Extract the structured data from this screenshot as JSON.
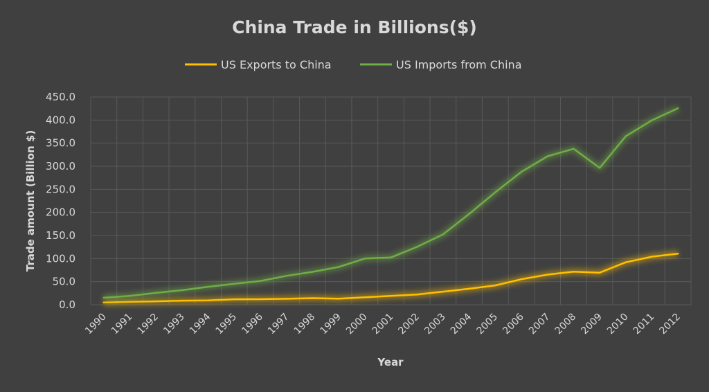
{
  "chart_data": {
    "type": "line",
    "title": "China Trade in Billions($)",
    "xlabel": "Year",
    "ylabel": "Trade amount  (Billion $)",
    "categories": [
      "1990",
      "1991",
      "1992",
      "1993",
      "1994",
      "1995",
      "1996",
      "1997",
      "1998",
      "1999",
      "2000",
      "2001",
      "2002",
      "2003",
      "2004",
      "2005",
      "2006",
      "2007",
      "2008",
      "2009",
      "2010",
      "2011",
      "2012"
    ],
    "ylim": [
      0,
      450
    ],
    "yticks": [
      "0.0",
      "50.0",
      "100.0",
      "150.0",
      "200.0",
      "250.0",
      "300.0",
      "350.0",
      "400.0",
      "450.0"
    ],
    "grid": true,
    "legend_position": "top",
    "series": [
      {
        "name": "US Exports to China",
        "color": "#ffc000",
        "values": [
          4.8,
          6.3,
          7.4,
          8.8,
          9.3,
          11.8,
          12.0,
          12.9,
          14.2,
          13.1,
          16.2,
          19.2,
          22.1,
          28.4,
          34.7,
          41.8,
          55.2,
          65.2,
          71.5,
          69.5,
          91.9,
          104.1,
          110.5
        ]
      },
      {
        "name": "US Imports from China",
        "color": "#70ad47",
        "values": [
          15.2,
          19.0,
          25.7,
          31.5,
          38.8,
          45.5,
          51.5,
          62.6,
          71.2,
          81.8,
          100.0,
          102.3,
          125.2,
          152.4,
          196.7,
          243.5,
          287.8,
          321.4,
          337.8,
          296.4,
          364.9,
          399.4,
          425.6
        ]
      }
    ]
  }
}
